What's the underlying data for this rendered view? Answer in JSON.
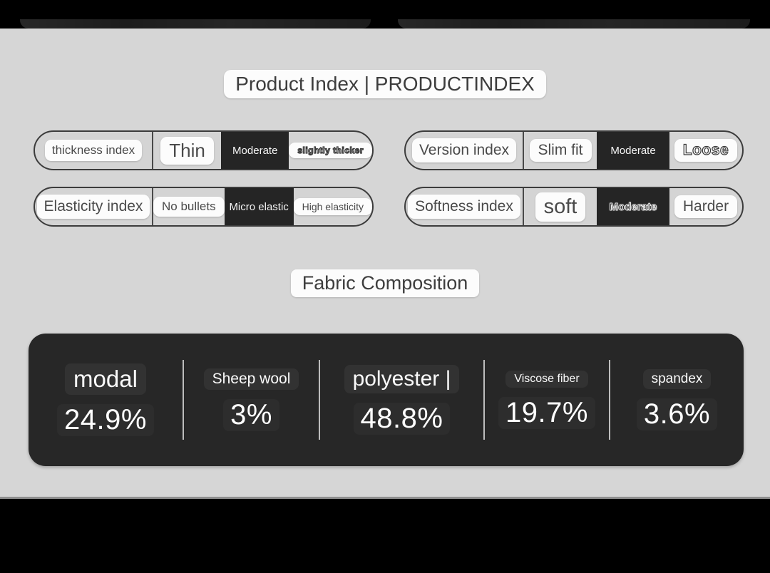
{
  "titles": {
    "product_index": "Product Index | PRODUCTINDEX",
    "fabric_composition": "Fabric Composition"
  },
  "indexes": [
    {
      "label": "thickness index",
      "options": [
        "Thin",
        "Moderate",
        "slightly thicker"
      ],
      "selected": "Moderate"
    },
    {
      "label": "Version index",
      "options": [
        "Slim fit",
        "Moderate",
        "Loose"
      ],
      "selected": "Moderate"
    },
    {
      "label": "Elasticity index",
      "options": [
        "No bullets",
        "Micro elastic",
        "High elasticity"
      ],
      "selected": "Micro elastic"
    },
    {
      "label": "Softness index",
      "options": [
        "soft",
        "Moderate",
        "Harder"
      ],
      "selected": "Moderate"
    }
  ],
  "fabric": {
    "items": [
      {
        "name": "modal",
        "percent": "24.9%"
      },
      {
        "name": "Sheep wool",
        "percent": "3%"
      },
      {
        "name": "polyester |",
        "percent": "48.8%"
      },
      {
        "name": "Viscose fiber",
        "percent": "19.7%"
      },
      {
        "name": "spandex",
        "percent": "3.6%"
      }
    ]
  },
  "colors": {
    "page_background": "#d6d6d6",
    "panel_dark": "#272727",
    "selected_segment": "#252525",
    "chip_white": "#fcfcfc",
    "frame_black": "#000000"
  }
}
